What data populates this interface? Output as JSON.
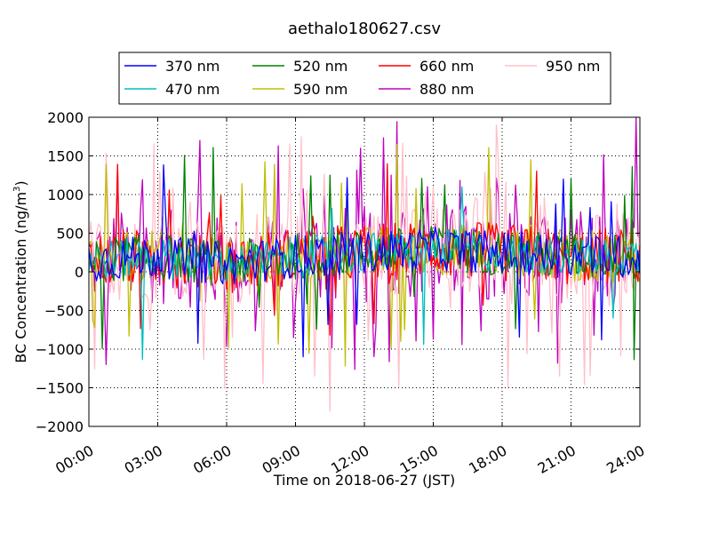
{
  "chart_data": {
    "type": "line",
    "title": "aethalo180627.csv",
    "xlabel": "Time on 2018-06-27 (JST)",
    "ylabel": "BC Concentration (ng/m³)",
    "ylabel_main": "BC Concentration (ng/m",
    "ylabel_sup": "3",
    "ylabel_end": ")",
    "xlim": [
      "00:00",
      "24:00"
    ],
    "ylim": [
      -2000,
      2000
    ],
    "x_ticks": [
      "00:00",
      "03:00",
      "06:00",
      "09:00",
      "12:00",
      "15:00",
      "18:00",
      "21:00",
      "24:00"
    ],
    "y_ticks": [
      "2000",
      "1500",
      "1000",
      "500",
      "0",
      "−500",
      "−1000",
      "−1500",
      "−2000"
    ],
    "grid": true,
    "legend_placement": "top-center",
    "series": [
      {
        "name": "370 nm",
        "color": "#0000ff",
        "amp": 280,
        "spike": 0.04
      },
      {
        "name": "470 nm",
        "color": "#00bfbf",
        "amp": 260,
        "spike": 0.03
      },
      {
        "name": "520 nm",
        "color": "#008000",
        "amp": 300,
        "spike": 0.05
      },
      {
        "name": "590 nm",
        "color": "#bfbf00",
        "amp": 340,
        "spike": 0.06
      },
      {
        "name": "660 nm",
        "color": "#ff0000",
        "amp": 380,
        "spike": 0.06
      },
      {
        "name": "880 nm",
        "color": "#bf00bf",
        "amp": 620,
        "spike": 0.18
      },
      {
        "name": "950 nm",
        "color": "#ffc0cb",
        "amp": 560,
        "spike": 0.16
      }
    ],
    "baseline_by_hour": [
      [
        0,
        150
      ],
      [
        3,
        200
      ],
      [
        6,
        100
      ],
      [
        9,
        200
      ],
      [
        12,
        250
      ],
      [
        15,
        300
      ],
      [
        18,
        250
      ],
      [
        21,
        200
      ],
      [
        24,
        200
      ]
    ],
    "notable_extremes": [
      {
        "series": "880 nm",
        "x": "00:45",
        "y": -1200
      },
      {
        "series": "880 nm",
        "x": "04:50",
        "y": 1700
      },
      {
        "series": "950 nm",
        "x": "08:45",
        "y": 1650
      },
      {
        "series": "950 nm",
        "x": "09:50",
        "y": -1350
      },
      {
        "series": "950 nm",
        "x": "10:30",
        "y": -1800
      },
      {
        "series": "880 nm",
        "x": "11:50",
        "y": 1600
      },
      {
        "series": "950 nm",
        "x": "17:45",
        "y": 1900
      },
      {
        "series": "950 nm",
        "x": "18:15",
        "y": -1500
      },
      {
        "series": "880 nm",
        "x": "23:50",
        "y": 2000
      }
    ]
  }
}
